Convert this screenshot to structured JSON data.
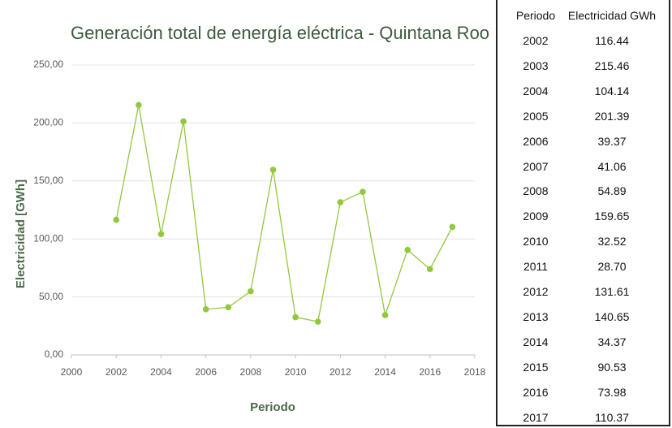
{
  "chart_data": {
    "type": "line",
    "title": "Generación total de energía eléctrica - Quintana Roo",
    "x_label": "Periodo",
    "y_label": "Electricidad [GWh]",
    "x": [
      2002,
      2003,
      2004,
      2005,
      2006,
      2007,
      2008,
      2009,
      2010,
      2011,
      2012,
      2013,
      2014,
      2015,
      2016,
      2017
    ],
    "values": [
      116.44,
      215.46,
      104.14,
      201.39,
      39.37,
      41.06,
      54.89,
      159.65,
      32.52,
      28.7,
      131.61,
      140.65,
      34.37,
      90.53,
      73.98,
      110.37
    ],
    "color": "#92c83e",
    "xlim": [
      2000,
      2018
    ],
    "xticks": [
      2000,
      2002,
      2004,
      2006,
      2008,
      2010,
      2012,
      2014,
      2016,
      2018
    ],
    "ylim": [
      0,
      250
    ],
    "yticks": [
      {
        "value": 0,
        "label": "0,00"
      },
      {
        "value": 50,
        "label": "50,00"
      },
      {
        "value": 100,
        "label": "100,00"
      },
      {
        "value": 150,
        "label": "150,00"
      },
      {
        "value": 200,
        "label": "200,00"
      },
      {
        "value": 250,
        "label": "250,00"
      }
    ],
    "grid": true
  },
  "table": {
    "columns": [
      "Periodo",
      "Electricidad GWh"
    ],
    "rows": [
      [
        "2002",
        "116.44"
      ],
      [
        "2003",
        "215.46"
      ],
      [
        "2004",
        "104.14"
      ],
      [
        "2005",
        "201.39"
      ],
      [
        "2006",
        "39.37"
      ],
      [
        "2007",
        "41.06"
      ],
      [
        "2008",
        "54.89"
      ],
      [
        "2009",
        "159.65"
      ],
      [
        "2010",
        "32.52"
      ],
      [
        "2011",
        "28.70"
      ],
      [
        "2012",
        "131.61"
      ],
      [
        "2013",
        "140.65"
      ],
      [
        "2014",
        "34.37"
      ],
      [
        "2015",
        "90.53"
      ],
      [
        "2016",
        "73.98"
      ],
      [
        "2017",
        "110.37"
      ]
    ]
  }
}
